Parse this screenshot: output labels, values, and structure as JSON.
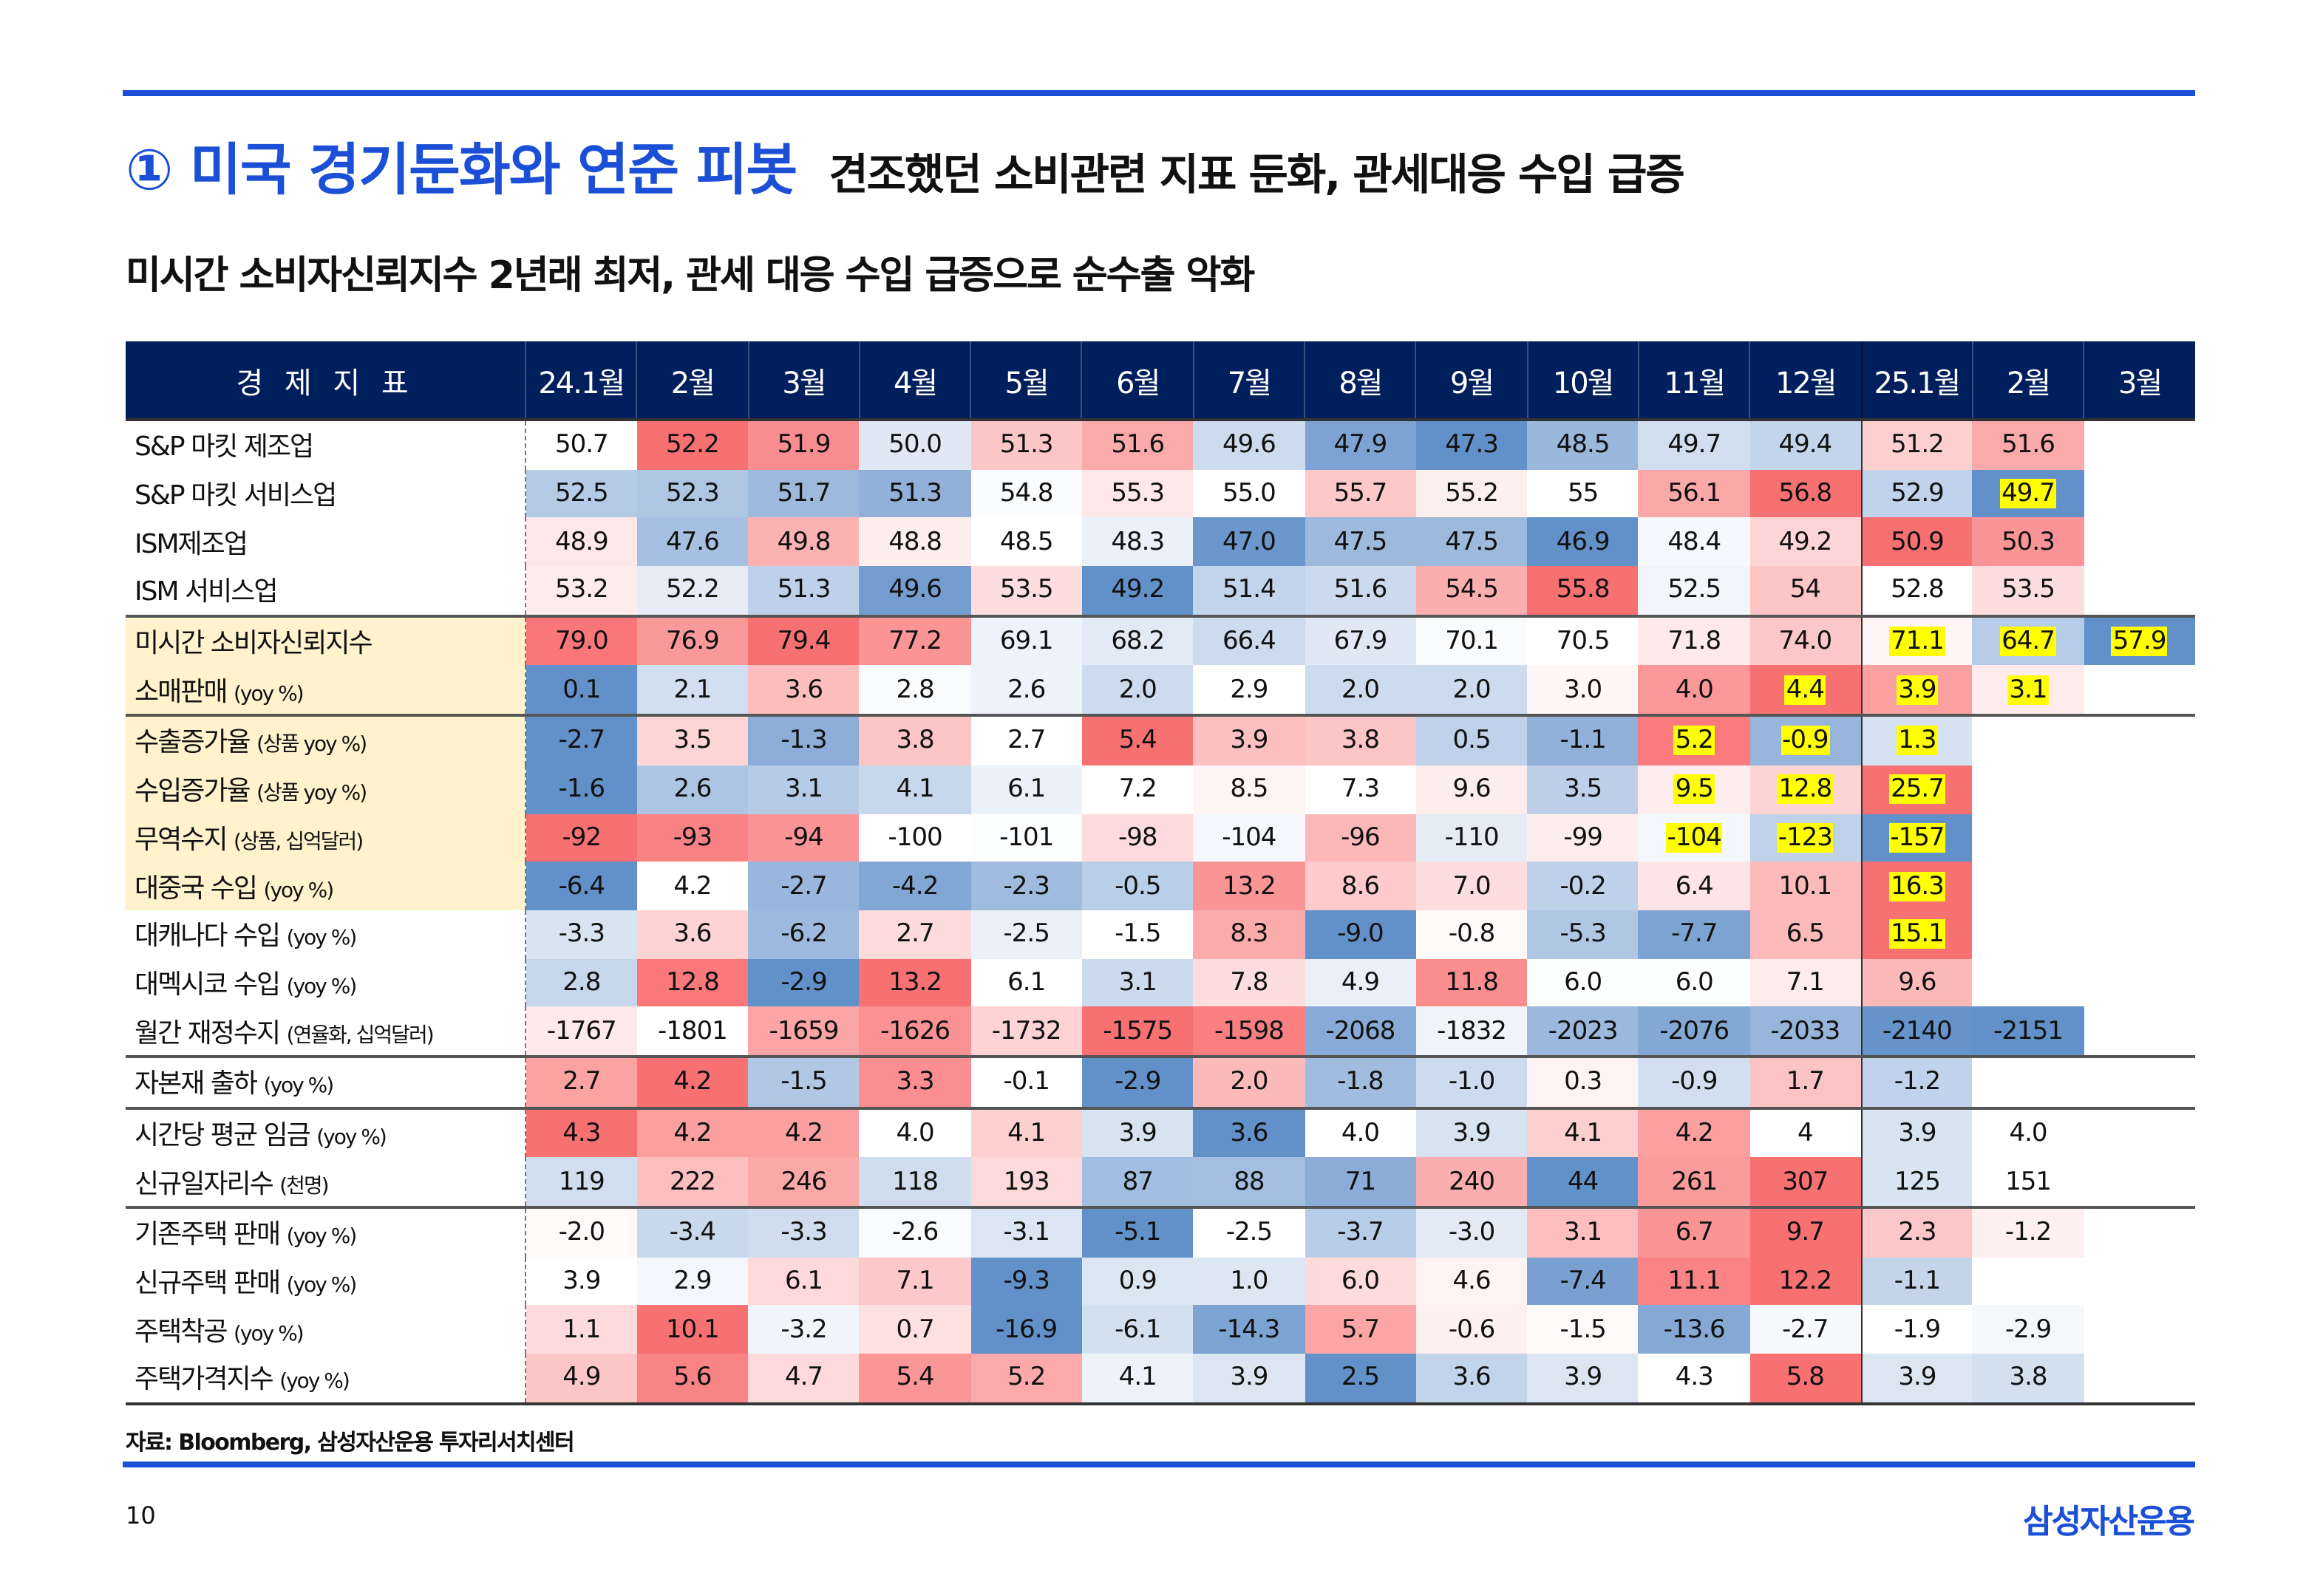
{
  "header": {
    "title": "① 미국 경기둔화와 연준 피봇",
    "subtitle": "견조했던 소비관련 지표 둔화, 관세대응 수입 급증",
    "heading": "미시간 소비자신뢰지수 2년래 최저, 관세 대응 수입 급증으로 순수출 악화"
  },
  "colors": {
    "accent": "#1a4fd6",
    "header_bg": "#001f5c",
    "hot": "#f8696b",
    "cold": "#5a8ac6",
    "highlight": "#ffff00",
    "label_highlight": "#fff2cc"
  },
  "table": {
    "label_header": "경 제 지 표",
    "columns": [
      "24.1월",
      "2월",
      "3월",
      "4월",
      "5월",
      "6월",
      "7월",
      "8월",
      "9월",
      "10월",
      "11월",
      "12월",
      "25.1월",
      "2월",
      "3월"
    ],
    "rows": [
      {
        "label": "S&P 마킷 제조업",
        "note": "",
        "values": [
          "50.7",
          "52.2",
          "51.9",
          "50.0",
          "51.3",
          "51.6",
          "49.6",
          "47.9",
          "47.3",
          "48.5",
          "49.7",
          "49.4",
          "51.2",
          "51.6",
          ""
        ],
        "hl": []
      },
      {
        "label": "S&P 마킷 서비스업",
        "note": "",
        "values": [
          "52.5",
          "52.3",
          "51.7",
          "51.3",
          "54.8",
          "55.3",
          "55.0",
          "55.7",
          "55.2",
          "55",
          "56.1",
          "56.8",
          "52.9",
          "49.7",
          ""
        ],
        "hl": [
          13
        ]
      },
      {
        "label": "ISM제조업",
        "note": "",
        "values": [
          "48.9",
          "47.6",
          "49.8",
          "48.8",
          "48.5",
          "48.3",
          "47.0",
          "47.5",
          "47.5",
          "46.9",
          "48.4",
          "49.2",
          "50.9",
          "50.3",
          ""
        ],
        "hl": []
      },
      {
        "label": "ISM 서비스업",
        "note": "",
        "values": [
          "53.2",
          "52.2",
          "51.3",
          "49.6",
          "53.5",
          "49.2",
          "51.4",
          "51.6",
          "54.5",
          "55.8",
          "52.5",
          "54",
          "52.8",
          "53.5",
          ""
        ],
        "hl": []
      },
      {
        "label": "미시간 소비자신뢰지수",
        "note": "",
        "values": [
          "79.0",
          "76.9",
          "79.4",
          "77.2",
          "69.1",
          "68.2",
          "66.4",
          "67.9",
          "70.1",
          "70.5",
          "71.8",
          "74.0",
          "71.1",
          "64.7",
          "57.9"
        ],
        "hl": [
          12,
          13,
          14
        ]
      },
      {
        "label": "소매판매",
        "note": "(yoy %)",
        "values": [
          "0.1",
          "2.1",
          "3.6",
          "2.8",
          "2.6",
          "2.0",
          "2.9",
          "2.0",
          "2.0",
          "3.0",
          "4.0",
          "4.4",
          "3.9",
          "3.1",
          ""
        ],
        "hl": [
          11,
          12,
          13
        ]
      },
      {
        "label": "수출증가율",
        "note": "(상품 yoy %)",
        "values": [
          "-2.7",
          "3.5",
          "-1.3",
          "3.8",
          "2.7",
          "5.4",
          "3.9",
          "3.8",
          "0.5",
          "-1.1",
          "5.2",
          "-0.9",
          "1.3",
          "",
          ""
        ],
        "hl": [
          10,
          11,
          12
        ]
      },
      {
        "label": "수입증가율",
        "note": "(상품 yoy %)",
        "values": [
          "-1.6",
          "2.6",
          "3.1",
          "4.1",
          "6.1",
          "7.2",
          "8.5",
          "7.3",
          "9.6",
          "3.5",
          "9.5",
          "12.8",
          "25.7",
          "",
          ""
        ],
        "hl": [
          10,
          11,
          12
        ]
      },
      {
        "label": "무역수지",
        "note": "(상품, 십억달러)",
        "values": [
          "-92",
          "-93",
          "-94",
          "-100",
          "-101",
          "-98",
          "-104",
          "-96",
          "-110",
          "-99",
          "-104",
          "-123",
          "-157",
          "",
          ""
        ],
        "hl": [
          10,
          11,
          12
        ]
      },
      {
        "label": "대중국 수입",
        "note": "(yoy %)",
        "values": [
          "-6.4",
          "4.2",
          "-2.7",
          "-4.2",
          "-2.3",
          "-0.5",
          "13.2",
          "8.6",
          "7.0",
          "-0.2",
          "6.4",
          "10.1",
          "16.3",
          "",
          ""
        ],
        "hl": [
          12
        ]
      },
      {
        "label": "대캐나다 수입",
        "note": "(yoy %)",
        "values": [
          "-3.3",
          "3.6",
          "-6.2",
          "2.7",
          "-2.5",
          "-1.5",
          "8.3",
          "-9.0",
          "-0.8",
          "-5.3",
          "-7.7",
          "6.5",
          "15.1",
          "",
          ""
        ],
        "hl": [
          12
        ]
      },
      {
        "label": "대멕시코 수입",
        "note": "(yoy %)",
        "values": [
          "2.8",
          "12.8",
          "-2.9",
          "13.2",
          "6.1",
          "3.1",
          "7.8",
          "4.9",
          "11.8",
          "6.0",
          "6.0",
          "7.1",
          "9.6",
          "",
          ""
        ],
        "hl": []
      },
      {
        "label": "월간 재정수지",
        "note": "(연율화, 십억달러)",
        "values": [
          "-1767",
          "-1801",
          "-1659",
          "-1626",
          "-1732",
          "-1575",
          "-1598",
          "-2068",
          "-1832",
          "-2023",
          "-2076",
          "-2033",
          "-2140",
          "-2151",
          ""
        ],
        "hl": []
      },
      {
        "label": "자본재 출하",
        "note": "(yoy %)",
        "values": [
          "2.7",
          "4.2",
          "-1.5",
          "3.3",
          "-0.1",
          "-2.9",
          "2.0",
          "-1.8",
          "-1.0",
          "0.3",
          "-0.9",
          "1.7",
          "-1.2",
          "",
          ""
        ],
        "hl": []
      },
      {
        "label": "시간당 평균 임금",
        "note": "(yoy %)",
        "values": [
          "4.3",
          "4.2",
          "4.2",
          "4.0",
          "4.1",
          "3.9",
          "3.6",
          "4.0",
          "3.9",
          "4.1",
          "4.2",
          "4",
          "3.9",
          "4.0",
          ""
        ],
        "hl": []
      },
      {
        "label": "신규일자리수",
        "note": "(천명)",
        "values": [
          "119",
          "222",
          "246",
          "118",
          "193",
          "87",
          "88",
          "71",
          "240",
          "44",
          "261",
          "307",
          "125",
          "151",
          ""
        ],
        "hl": []
      },
      {
        "label": "기존주택 판매",
        "note": "(yoy %)",
        "values": [
          "-2.0",
          "-3.4",
          "-3.3",
          "-2.6",
          "-3.1",
          "-5.1",
          "-2.5",
          "-3.7",
          "-3.0",
          "3.1",
          "6.7",
          "9.7",
          "2.3",
          "-1.2",
          ""
        ],
        "hl": []
      },
      {
        "label": "신규주택 판매",
        "note": "(yoy %)",
        "values": [
          "3.9",
          "2.9",
          "6.1",
          "7.1",
          "-9.3",
          "0.9",
          "1.0",
          "6.0",
          "4.6",
          "-7.4",
          "11.1",
          "12.2",
          "-1.1",
          "",
          ""
        ],
        "hl": []
      },
      {
        "label": "주택착공",
        "note": "(yoy %)",
        "values": [
          "1.1",
          "10.1",
          "-3.2",
          "0.7",
          "-16.9",
          "-6.1",
          "-14.3",
          "5.7",
          "-0.6",
          "-1.5",
          "-13.6",
          "-2.7",
          "-1.9",
          "-2.9",
          ""
        ],
        "hl": []
      },
      {
        "label": "주택가격지수",
        "note": "(yoy %)",
        "values": [
          "4.9",
          "5.6",
          "4.7",
          "5.4",
          "5.2",
          "4.1",
          "3.9",
          "2.5",
          "3.6",
          "3.9",
          "4.3",
          "5.8",
          "3.9",
          "3.8",
          ""
        ],
        "hl": []
      }
    ],
    "label_highlight_rows": [
      4,
      5,
      6,
      7,
      8,
      9
    ],
    "separator_after_rows": [
      3,
      5,
      12,
      13,
      15
    ]
  },
  "footer": {
    "source": "자료: Bloomberg, 삼성자산운용 투자리서치센터",
    "page_number": "10",
    "logo": "삼성자산운용"
  }
}
